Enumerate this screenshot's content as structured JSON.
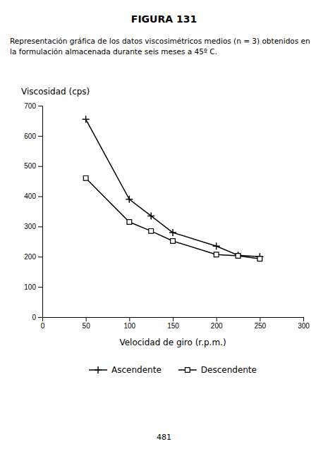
{
  "chart_data": {
    "type": "line",
    "title": "FIGURA 131",
    "subtitle": [
      "Representación gráfica de los datos viscosimétricos medios (n = 3) obtenidos en",
      "la formulación almacenada durante seis meses a 45º C."
    ],
    "xlabel": "Velocidad de giro (r.p.m.)",
    "ylabel": "Viscosidad (cps)",
    "x": [
      50,
      100,
      125,
      150,
      200,
      225,
      250
    ],
    "series": [
      {
        "name": "Ascendente",
        "color": "#000000",
        "marker": "plus",
        "values": [
          655,
          390,
          335,
          280,
          235,
          205,
          200
        ]
      },
      {
        "name": "Descendente",
        "color": "#000000",
        "marker": "square",
        "values": [
          460,
          315,
          285,
          252,
          207,
          203,
          193
        ]
      }
    ],
    "xlim": [
      0,
      300
    ],
    "ylim": [
      0,
      700
    ],
    "xticks": [
      0,
      50,
      100,
      150,
      200,
      250,
      300
    ],
    "yticks": [
      0,
      100,
      200,
      300,
      400,
      500,
      600,
      700
    ],
    "grid": false,
    "legend": "bottom",
    "annotations": [
      "481"
    ]
  }
}
